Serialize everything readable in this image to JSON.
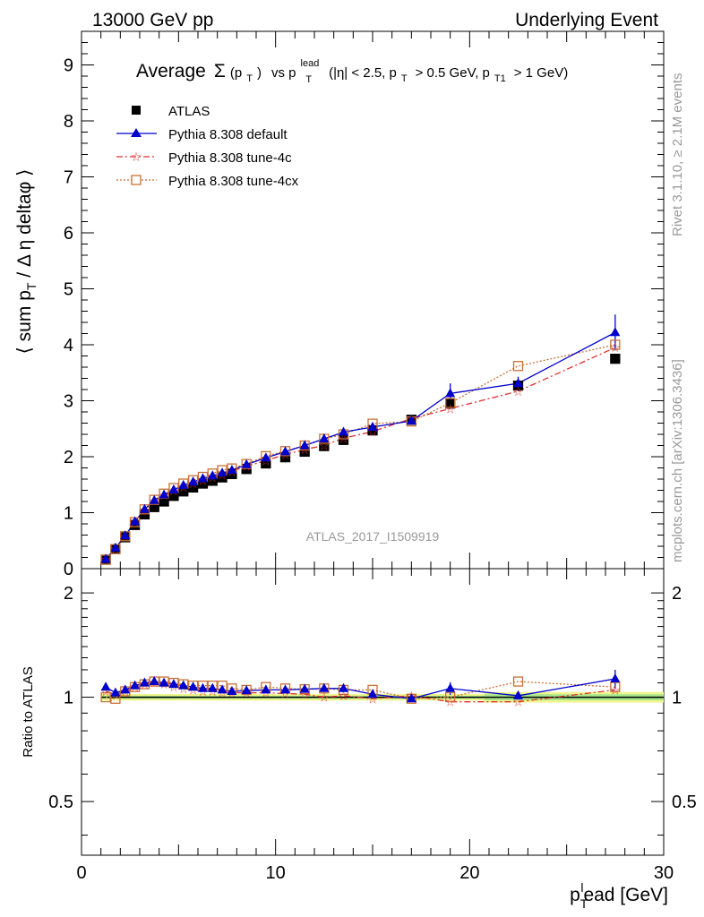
{
  "header": {
    "left": "13000 GeV pp",
    "right": "Underlying Event"
  },
  "side": {
    "rivet": "Rivet 3.1.10, ≥ 2.1M events",
    "mcplots": "mcplots.cern.ch [arXiv:1306.3436]"
  },
  "chart_data": [
    {
      "type": "scatter",
      "title_parts": {
        "average": "Average",
        "sigma": "Σ",
        "pt_open": "(p",
        "pt_sub": "T",
        "pt_close": ")",
        "vs": "vs p",
        "lead_sup": "lead",
        "lead_sub": "T",
        "cuts1": "(|η| < 2.5, p",
        "cuts1_sub": "T",
        "cuts2": "> 0.5 GeV, p",
        "cuts2_sub": "T1",
        "cuts3": "> 1 GeV)"
      },
      "ylabel_parts": {
        "a": "⟨ sum p",
        "sub": "T",
        "b": " / Δ η deltaφ ⟩"
      },
      "analysis_label": "ATLAS_2017_I1509919",
      "xlim": [
        0,
        30
      ],
      "ylim": [
        0,
        9.6
      ],
      "yticks": [
        0,
        1,
        2,
        3,
        4,
        5,
        6,
        7,
        8,
        9
      ],
      "legend_position": "top-left",
      "x": [
        1.25,
        1.75,
        2.25,
        2.75,
        3.25,
        3.75,
        4.25,
        4.75,
        5.25,
        5.75,
        6.25,
        6.75,
        7.25,
        7.75,
        8.5,
        9.5,
        10.5,
        11.5,
        12.5,
        13.5,
        15.0,
        17.0,
        19.0,
        22.5,
        27.5
      ],
      "series": [
        {
          "name": "ATLAS",
          "color": "#000000",
          "values": [
            0.16,
            0.35,
            0.56,
            0.78,
            0.97,
            1.1,
            1.2,
            1.3,
            1.38,
            1.45,
            1.52,
            1.57,
            1.63,
            1.69,
            1.78,
            1.88,
            1.99,
            2.09,
            2.19,
            2.3,
            2.47,
            2.66,
            2.95,
            3.27,
            3.75
          ]
        },
        {
          "name": "Pythia 8.308 default",
          "color": "#0000cc",
          "values": [
            0.17,
            0.37,
            0.59,
            0.84,
            1.06,
            1.22,
            1.32,
            1.41,
            1.49,
            1.55,
            1.61,
            1.66,
            1.71,
            1.76,
            1.86,
            1.98,
            2.09,
            2.2,
            2.32,
            2.44,
            2.53,
            2.64,
            3.13,
            3.31,
            4.22
          ]
        },
        {
          "name": "Pythia 8.308 tune-4c",
          "color": "#e03030",
          "values": [
            0.17,
            0.36,
            0.58,
            0.83,
            1.05,
            1.21,
            1.31,
            1.39,
            1.46,
            1.52,
            1.58,
            1.63,
            1.68,
            1.74,
            1.83,
            1.93,
            2.04,
            2.13,
            2.2,
            2.33,
            2.45,
            2.68,
            2.86,
            3.17,
            3.95
          ]
        },
        {
          "name": "Pythia 8.308 tune-4cx",
          "color": "#c87137",
          "values": [
            0.16,
            0.35,
            0.58,
            0.83,
            1.06,
            1.23,
            1.34,
            1.44,
            1.52,
            1.58,
            1.64,
            1.7,
            1.76,
            1.79,
            1.87,
            2.01,
            2.1,
            2.2,
            2.32,
            2.4,
            2.59,
            2.63,
            2.96,
            3.62,
            4.0
          ]
        }
      ]
    },
    {
      "type": "scatter",
      "ylabel": "Ratio to ATLAS",
      "xlabel_parts": {
        "p": "p",
        "sub": "T",
        "sup": "l",
        "rest": "ead [GeV]"
      },
      "xlim": [
        0,
        30
      ],
      "ylim": [
        0.35,
        2.35
      ],
      "xticks": [
        0,
        10,
        20,
        30
      ],
      "yticks": [
        0.5,
        1,
        2
      ],
      "ytick_labels": [
        "0.5",
        "1",
        "2"
      ],
      "x": [
        1.25,
        1.75,
        2.25,
        2.75,
        3.25,
        3.75,
        4.25,
        4.75,
        5.25,
        5.75,
        6.25,
        6.75,
        7.25,
        7.75,
        8.5,
        9.5,
        10.5,
        11.5,
        12.5,
        13.5,
        15.0,
        17.0,
        19.0,
        22.5,
        27.5
      ],
      "series": [
        {
          "name": "Pythia 8.308 default",
          "color": "#0000cc",
          "values": [
            1.07,
            1.03,
            1.05,
            1.08,
            1.1,
            1.11,
            1.1,
            1.09,
            1.08,
            1.07,
            1.06,
            1.06,
            1.05,
            1.04,
            1.045,
            1.05,
            1.05,
            1.055,
            1.06,
            1.06,
            1.02,
            0.99,
            1.06,
            1.01,
            1.13
          ]
        },
        {
          "name": "Pythia 8.308 tune-4c",
          "color": "#e03030",
          "values": [
            1.04,
            1.02,
            1.04,
            1.07,
            1.09,
            1.1,
            1.09,
            1.07,
            1.06,
            1.05,
            1.04,
            1.04,
            1.03,
            1.03,
            1.03,
            1.03,
            1.025,
            1.02,
            1.0,
            1.01,
            0.99,
            1.01,
            0.97,
            0.97,
            1.05
          ]
        },
        {
          "name": "Pythia 8.308 tune-4cx",
          "color": "#c87137",
          "values": [
            1.0,
            0.99,
            1.04,
            1.07,
            1.09,
            1.11,
            1.11,
            1.1,
            1.09,
            1.08,
            1.08,
            1.08,
            1.08,
            1.06,
            1.05,
            1.07,
            1.06,
            1.055,
            1.06,
            1.05,
            1.05,
            0.99,
            1.0,
            1.11,
            1.07
          ]
        }
      ]
    }
  ]
}
